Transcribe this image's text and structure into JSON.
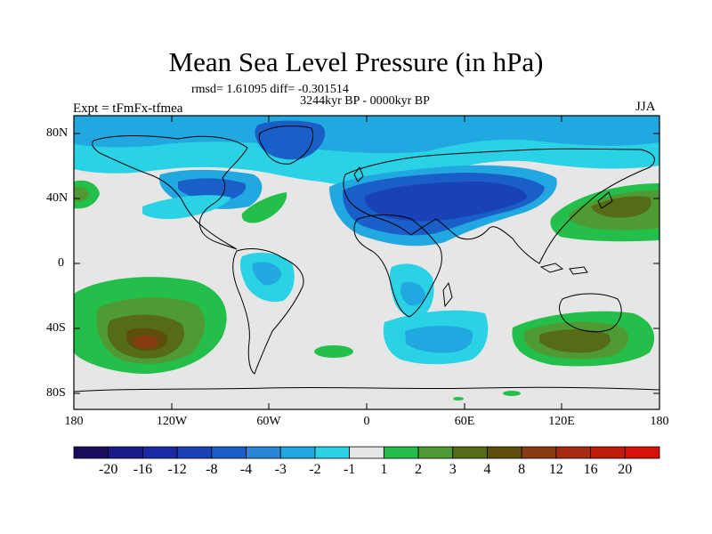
{
  "title": "Mean Sea Level Pressure (in hPa)",
  "stats": "rmsd= 1.61095 diff= -0.301514",
  "period": "3244kyr BP - 0000kyr BP",
  "experiment": "Expt = tFmFx-tfmea",
  "season": "JJA",
  "lat_labels": [
    "80N",
    "40N",
    "0",
    "40S",
    "80S"
  ],
  "lon_labels": [
    "180",
    "120W",
    "60W",
    "0",
    "60E",
    "120E",
    "180"
  ],
  "colorbar": {
    "labels": [
      "-20",
      "-16",
      "-12",
      "-8",
      "-4",
      "-3",
      "-2",
      "-1",
      "1",
      "2",
      "3",
      "4",
      "8",
      "12",
      "16",
      "20"
    ],
    "colors": [
      "#1a0b5c",
      "#1a1a8c",
      "#1a2aa6",
      "#1a42b8",
      "#1a5ec8",
      "#2a86d6",
      "#22a8e0",
      "#2ad2e6",
      "#e6e6e6",
      "#24bf4a",
      "#4f9a32",
      "#566b16",
      "#5e4e0e",
      "#8a3a10",
      "#a82a10",
      "#c01a0a",
      "#d81208"
    ]
  }
}
